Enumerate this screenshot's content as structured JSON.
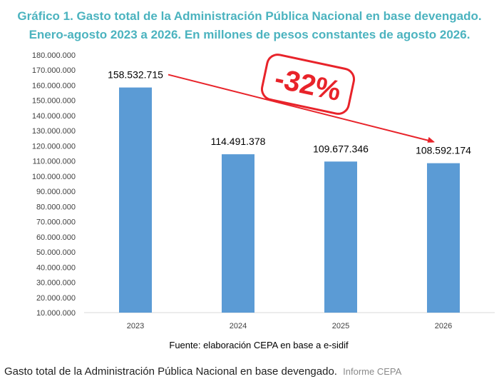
{
  "header": {
    "title_line1": "Gráfico 1. Gasto total de la Administración Pública Nacional en base devengado.",
    "title_line2": "Enero-agosto 2023 a 2026. En millones de pesos constantes de agosto 2026."
  },
  "chart_data": {
    "type": "bar",
    "categories": [
      "2023",
      "2024",
      "2025",
      "2026"
    ],
    "values": [
      158532715,
      114491378,
      109677346,
      108592174
    ],
    "data_labels": [
      "158.532.715",
      "114.491.378",
      "109.677.346",
      "108.592.174"
    ],
    "ylim": [
      10000000,
      180000000
    ],
    "ytick_labels": [
      "10.000.000",
      "20.000.000",
      "30.000.000",
      "40.000.000",
      "50.000.000",
      "60.000.000",
      "70.000.000",
      "80.000.000",
      "90.000.000",
      "100.000.000",
      "110.000.000",
      "120.000.000",
      "130.000.000",
      "140.000.000",
      "150.000.000",
      "160.000.000",
      "170.000.000",
      "180.000.000"
    ],
    "annotation": "-32%",
    "source": "Fuente: elaboración CEPA en base a e-sidif",
    "grid": false,
    "legend": "none",
    "bar_color": "#5b9bd5",
    "arrow_color": "#e8232a"
  },
  "caption": {
    "text": "Gasto total de la Administración Pública Nacional en base devengado.",
    "credit": "Informe CEPA"
  }
}
